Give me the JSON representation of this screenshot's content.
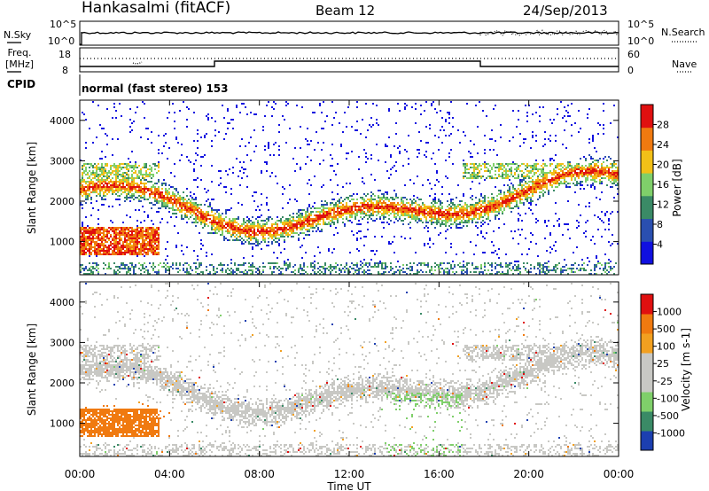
{
  "header": {
    "station": "Hankasalmi (fitACF)",
    "beam": "Beam 12",
    "date": "24/Sep/2013"
  },
  "aux_panels": {
    "nsky_label": "N.Sky",
    "nsearch_label": "N.Search",
    "nsky_ticks": [
      "10^5",
      "10^0"
    ],
    "nsearch_ticks": [
      "10^5",
      "10^0"
    ],
    "freq_label_1": "Freq.",
    "freq_label_2": "[MHz]",
    "freq_ticks": [
      "18",
      "8"
    ],
    "nave_ticks": [
      "60",
      "0"
    ],
    "nave_label": "Nave",
    "cpid_label": "CPID",
    "cpid_value": "normal (fast stereo) 153"
  },
  "chart_data": [
    {
      "type": "heatmap",
      "name": "power",
      "ylabel": "Slant Range [km]",
      "yticks": [
        "4000",
        "3000",
        "2000",
        "1000"
      ],
      "ylim": [
        180,
        4500
      ],
      "xlim_hours": [
        0,
        24
      ],
      "colorbar_label": "Power [dB]",
      "colorbar_ticks": [
        "28",
        "24",
        "20",
        "16",
        "12",
        "8",
        "4"
      ],
      "colors": [
        "#1010e0",
        "#2a4fb0",
        "#3a8a66",
        "#7fcf6a",
        "#f2c018",
        "#f07a10",
        "#e01010"
      ]
    },
    {
      "type": "heatmap",
      "name": "velocity",
      "ylabel": "Slant Range [km]",
      "yticks": [
        "4000",
        "3000",
        "2000",
        "1000"
      ],
      "ylim": [
        180,
        4500
      ],
      "xlim_hours": [
        0,
        24
      ],
      "colorbar_label": "Velocity [m s-1]",
      "colorbar_ticks": [
        "1000",
        "500",
        "100",
        "25",
        "-25",
        "-100",
        "-500",
        "-1000"
      ],
      "colors": [
        "#1c3fb0",
        "#3a8a66",
        "#7fcf6a",
        "#c8c8c4",
        "#c8c8c4",
        "#f2a020",
        "#f07a10",
        "#e01010"
      ]
    }
  ],
  "xaxis": {
    "ticks": [
      "00:00",
      "04:00",
      "08:00",
      "12:00",
      "16:00",
      "20:00",
      "00:00"
    ],
    "label": "Time UT"
  }
}
